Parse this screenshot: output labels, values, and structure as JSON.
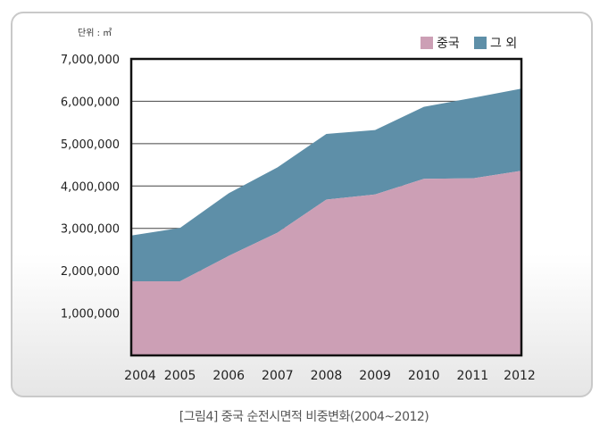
{
  "chart_data": {
    "type": "area",
    "stacked": true,
    "unit_label": "단위 : ㎡",
    "x": [
      "2004",
      "2005",
      "2006",
      "2007",
      "2008",
      "2009",
      "2010",
      "2011",
      "2012"
    ],
    "series": [
      {
        "name": "중국",
        "color": "#cc9fb5",
        "values": [
          1750000,
          1750000,
          2350000,
          2900000,
          3680000,
          3800000,
          4170000,
          4180000,
          4360000
        ]
      },
      {
        "name": "그 외",
        "color": "#5e8fa8",
        "values": [
          1080000,
          1260000,
          1480000,
          1540000,
          1550000,
          1520000,
          1700000,
          1900000,
          1940000
        ]
      }
    ],
    "ylim": [
      0,
      7000000
    ],
    "y_ticks": [
      "1,000,000",
      "2,000,000",
      "3,000,000",
      "4,000,000",
      "5,000,000",
      "6,000,000",
      "7,000,000"
    ],
    "legend_position": "top-right",
    "grid": true
  },
  "caption": "[그림4] 중국 순전시면적 비중변화(2004~2012)"
}
